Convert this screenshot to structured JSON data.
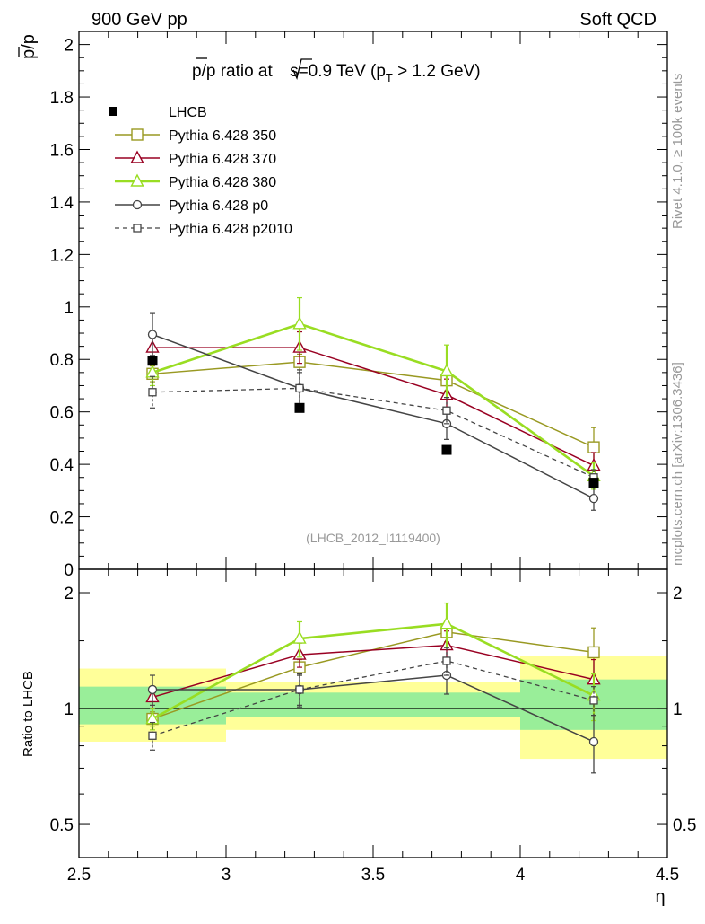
{
  "header": {
    "left": "900 GeV pp",
    "right": "Soft QCD"
  },
  "side_text": {
    "rivet": "Rivet 4.1.0, ≥ 100k events",
    "mcplots": "mcplots.cern.ch [arXiv:1306.3436]"
  },
  "chart_data": {
    "type": "line",
    "title": "p̅/p ratio at √s=0.9 TeV (p_T > 1.2 GeV)",
    "title_parts": {
      "a": "p/p ratio at ",
      "b": "s=0.9 TeV (p",
      "c": "T",
      "d": " > 1.2 GeV)"
    },
    "analysis_id": "(LHCB_2012_I1119400)",
    "xlabel": "η",
    "ylabel": "p/p",
    "ratio_ylabel": "Ratio to LHCB",
    "xlim": [
      2.5,
      4.5
    ],
    "ylim": [
      0,
      2.05
    ],
    "ratio_ylim": [
      0.41,
      2.3
    ],
    "x_ticks": [
      2.5,
      3,
      3.5,
      4,
      4.5
    ],
    "x_tick_labels": [
      "2.5",
      "3",
      "3.5",
      "4",
      "4.5"
    ],
    "y_ticks": [
      0,
      0.2,
      0.4,
      0.6,
      0.8,
      1,
      1.2,
      1.4,
      1.6,
      1.8,
      2
    ],
    "y_tick_labels": [
      "0",
      "0.2",
      "0.4",
      "0.6",
      "0.8",
      "1",
      "1.2",
      "1.4",
      "1.6",
      "1.8",
      "2"
    ],
    "ratio_ticks": [
      0.5,
      1,
      2
    ],
    "ratio_tick_labels": [
      "0.5",
      "1",
      "2"
    ],
    "bins": [
      [
        2.5,
        3.0
      ],
      [
        3.0,
        3.5
      ],
      [
        3.5,
        4.0
      ],
      [
        4.0,
        4.5
      ]
    ],
    "x": [
      2.75,
      3.25,
      3.75,
      4.25
    ],
    "data": {
      "name": "LHCB",
      "values": [
        0.795,
        0.615,
        0.455,
        0.33
      ]
    },
    "data_bands": {
      "inner": [
        [
          0.91,
          1.14
        ],
        [
          0.95,
          1.1
        ],
        [
          0.95,
          1.1
        ],
        [
          0.88,
          1.19
        ]
      ],
      "outer": [
        [
          0.82,
          1.27
        ],
        [
          0.88,
          1.17
        ],
        [
          0.88,
          1.17
        ],
        [
          0.74,
          1.37
        ]
      ]
    },
    "legend": [
      "LHCB",
      "Pythia 6.428 350",
      "Pythia 6.428 370",
      "Pythia 6.428 380",
      "Pythia 6.428 p0",
      "Pythia 6.428 p2010"
    ],
    "series": [
      {
        "name": "Pythia 6.428 350",
        "color": "#999922",
        "marker": "square",
        "dash": false,
        "width": 1.5,
        "values": [
          0.745,
          0.79,
          0.72,
          0.465
        ],
        "errors": [
          0.03,
          0.03,
          0.04,
          0.075
        ],
        "ratio": [
          0.94,
          1.28,
          1.58,
          1.4
        ],
        "ratio_errors": [
          0.04,
          0.06,
          0.09,
          0.22
        ]
      },
      {
        "name": "Pythia 6.428 370",
        "color": "#990022",
        "marker": "triangle",
        "dash": false,
        "width": 1.5,
        "values": [
          0.845,
          0.845,
          0.665,
          0.395
        ],
        "errors": [
          0.06,
          0.06,
          0.06,
          0.05
        ],
        "ratio": [
          1.07,
          1.38,
          1.46,
          1.19
        ],
        "ratio_errors": [
          0.07,
          0.1,
          0.13,
          0.15
        ]
      },
      {
        "name": "Pythia 6.428 380",
        "color": "#99dd22",
        "marker": "triangle",
        "dash": false,
        "width": 2.6,
        "values": [
          0.75,
          0.935,
          0.755,
          0.355
        ],
        "errors": [
          0.05,
          0.1,
          0.1,
          0.05
        ],
        "ratio": [
          0.94,
          1.52,
          1.66,
          1.08
        ],
        "ratio_errors": [
          0.06,
          0.16,
          0.22,
          0.15
        ]
      },
      {
        "name": "Pythia 6.428 p0",
        "color": "#444444",
        "marker": "circle",
        "dash": false,
        "width": 1.5,
        "values": [
          0.895,
          0.69,
          0.555,
          0.27
        ],
        "errors": [
          0.08,
          0.07,
          0.06,
          0.045
        ],
        "ratio": [
          1.12,
          1.12,
          1.22,
          0.82
        ],
        "ratio_errors": [
          0.1,
          0.11,
          0.13,
          0.14
        ]
      },
      {
        "name": "Pythia 6.428 p2010",
        "color": "#444444",
        "marker": "square-small",
        "dash": true,
        "width": 1.3,
        "values": [
          0.675,
          0.69,
          0.605,
          0.35
        ],
        "errors": [
          0.06,
          0.06,
          0.05,
          0.03
        ],
        "ratio": [
          0.85,
          1.12,
          1.33,
          1.05
        ],
        "ratio_errors": [
          0.07,
          0.1,
          0.11,
          0.09
        ]
      }
    ]
  }
}
